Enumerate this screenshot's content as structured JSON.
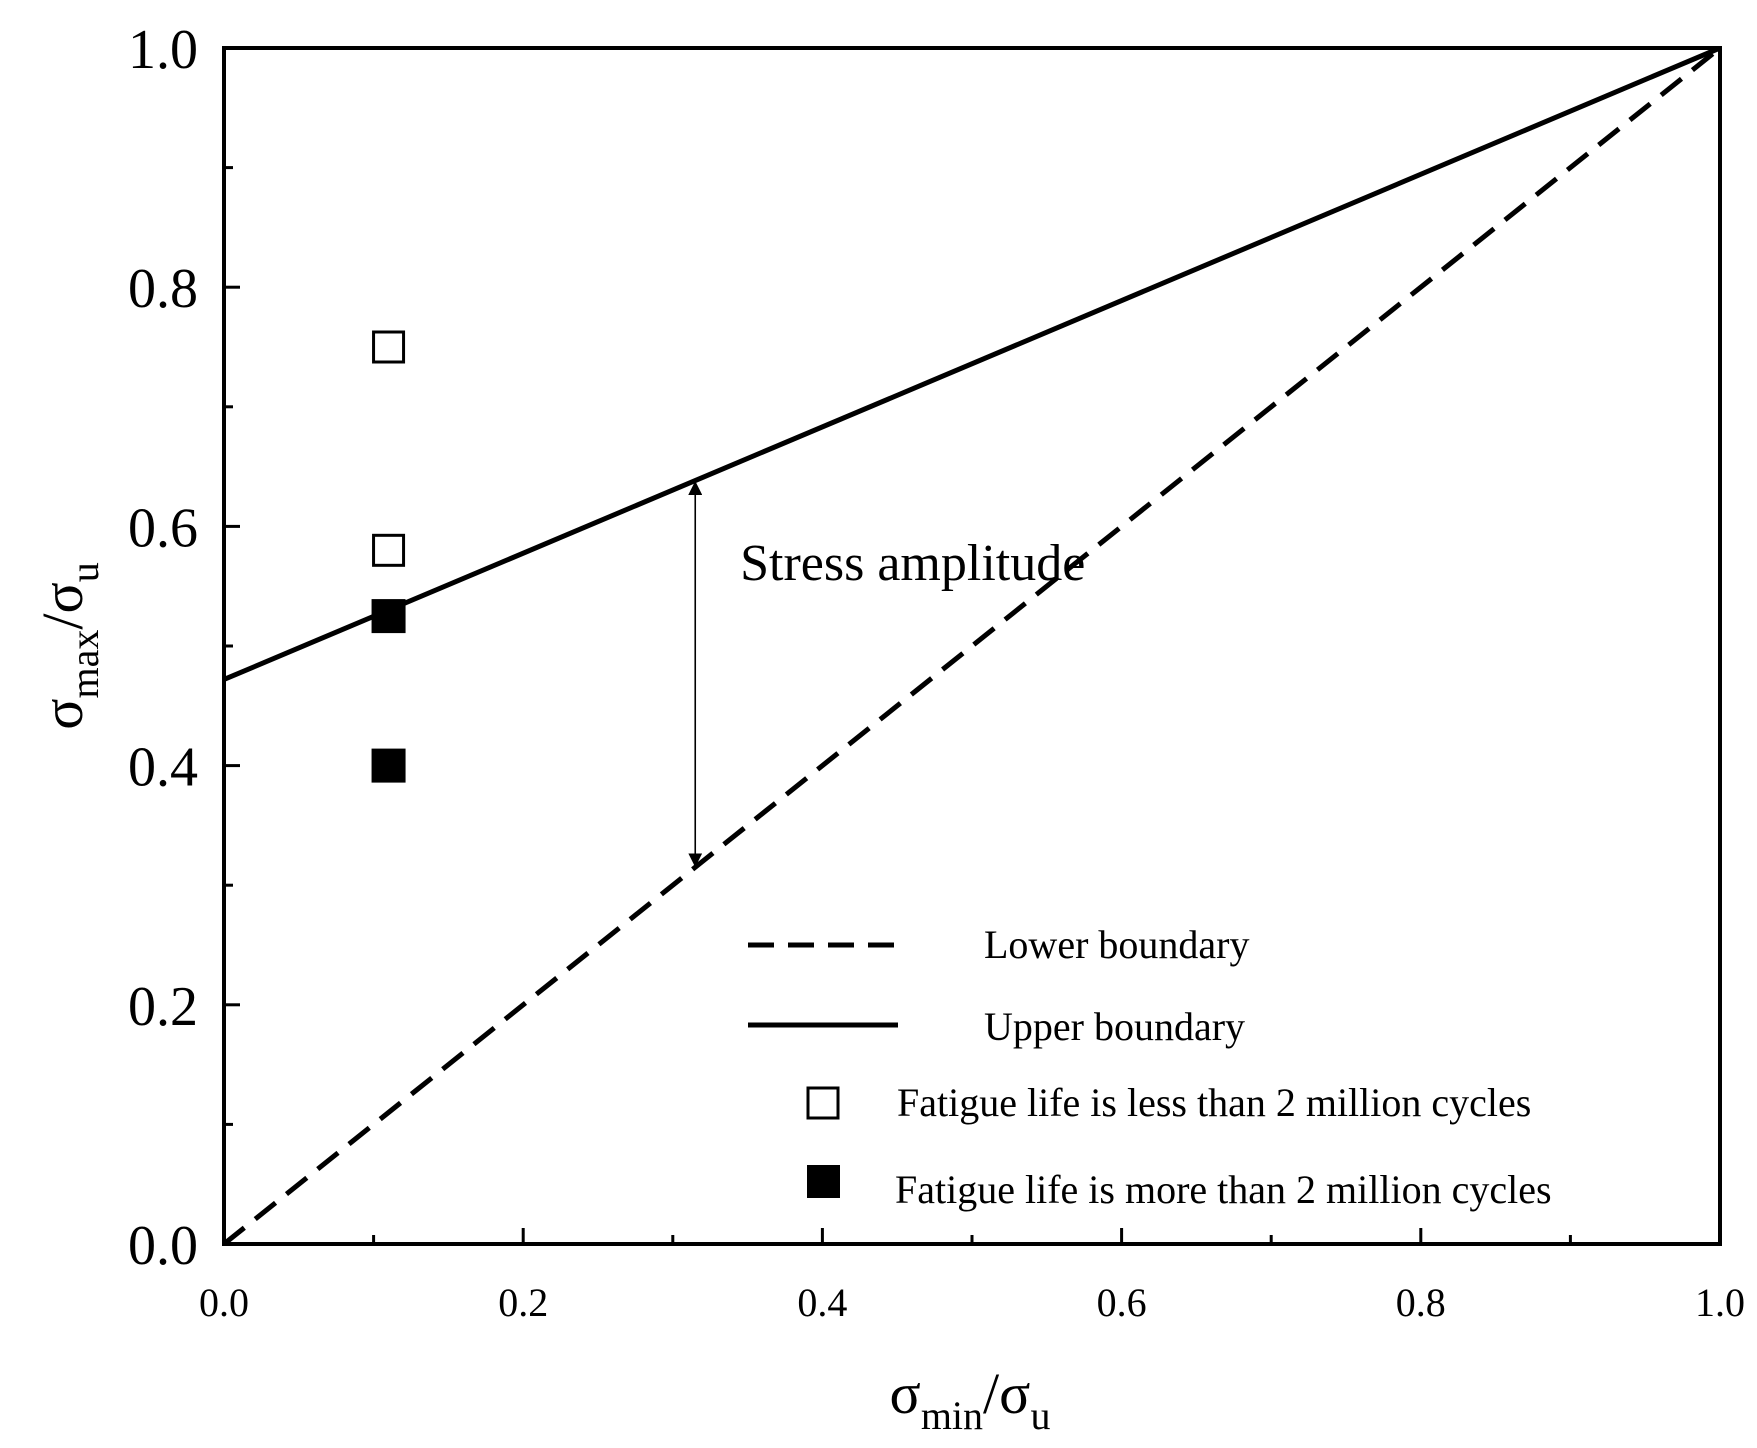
{
  "chart_data": {
    "type": "line",
    "title": "",
    "xlabel": {
      "main": "σ",
      "sub": "min",
      "rest": "/σ",
      "sub2": "u"
    },
    "ylabel": {
      "main": "σ",
      "sub": "max",
      "rest": "/σ",
      "sub2": "u"
    },
    "xlim": [
      0.0,
      1.0
    ],
    "ylim": [
      0.0,
      1.0
    ],
    "x_ticks": [
      0.0,
      0.2,
      0.4,
      0.6,
      0.8,
      1.0
    ],
    "x_tick_labels": [
      "0.0",
      "0.2",
      "0.4",
      "0.6",
      "0.8",
      "1.0"
    ],
    "y_ticks": [
      0.0,
      0.2,
      0.4,
      0.6,
      0.8,
      1.0
    ],
    "y_tick_labels": [
      "0.0",
      "0.2",
      "0.4",
      "0.6",
      "0.8",
      "1.0"
    ],
    "minor_ticks_x": [
      0.1,
      0.3,
      0.5,
      0.7,
      0.9
    ],
    "minor_ticks_y": [
      0.1,
      0.3,
      0.5,
      0.7,
      0.9
    ],
    "grid": false,
    "series": [
      {
        "name": "Lower boundary",
        "kind": "line",
        "style": "dashed",
        "points": [
          [
            0.0,
            0.0
          ],
          [
            1.0,
            1.0
          ]
        ]
      },
      {
        "name": "Upper boundary",
        "kind": "line",
        "style": "solid",
        "points": [
          [
            0.0,
            0.472
          ],
          [
            1.0,
            1.0
          ]
        ]
      },
      {
        "name": "Fatigue life is less than 2 million cycles",
        "kind": "scatter",
        "marker": "open-square",
        "points": [
          [
            0.11,
            0.75
          ],
          [
            0.11,
            0.58
          ]
        ]
      },
      {
        "name": "Fatigue life is more than 2 million cycles",
        "kind": "scatter",
        "marker": "filled-square",
        "points": [
          [
            0.11,
            0.525
          ],
          [
            0.11,
            0.4
          ]
        ]
      }
    ],
    "annotations": [
      {
        "text": "Stress amplitude",
        "x": 0.345,
        "y": 0.555,
        "arrow_x": 0.315,
        "arrow_from_y": 0.315,
        "arrow_to_y": 0.638
      }
    ],
    "legend_position": "bottom-right"
  }
}
